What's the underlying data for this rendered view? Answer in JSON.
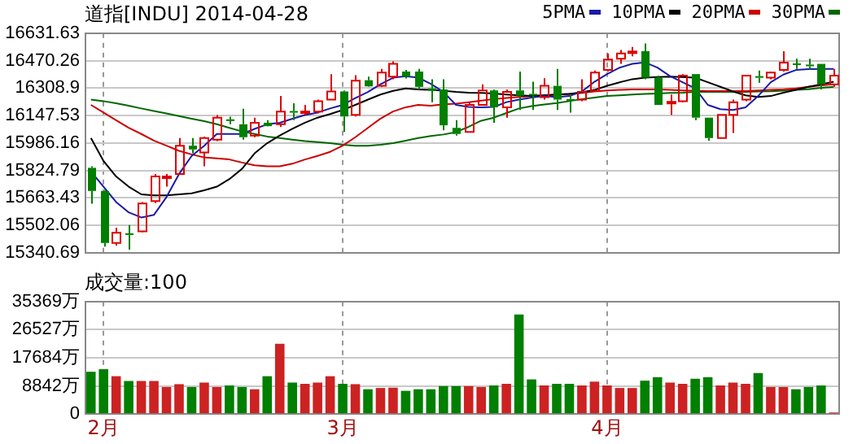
{
  "chart_data": [
    {
      "type": "candlestick",
      "title": "道指[INDU] 2014-04-28",
      "legend": "top right",
      "marker": "none",
      "grid": true,
      "tick_labels": "y",
      "categories": [
        null,
        null,
        null,
        null,
        null,
        null,
        null,
        null,
        null,
        null,
        null,
        null,
        null,
        null,
        null,
        null,
        null,
        null,
        null,
        null,
        null,
        null,
        null,
        null,
        null,
        null,
        null,
        null,
        null,
        null,
        null,
        null,
        null,
        null,
        null,
        null,
        null,
        null,
        null,
        null,
        null,
        null,
        null,
        null,
        null,
        null,
        null,
        null,
        null,
        null,
        null,
        null,
        null,
        null,
        null,
        null,
        null,
        null,
        null,
        null
      ],
      "ylim": [
        15340.69,
        16631.63
      ],
      "yticks": [
        15340.69,
        15502.06,
        15663.43,
        15824.79,
        15986.16,
        16147.53,
        16308.9,
        16470.26,
        16631.63
      ],
      "ohlc": [
        [
          15840,
          15849,
          15629,
          15704
        ],
        [
          15704,
          15710,
          15377,
          15398
        ],
        [
          15398,
          15488,
          15383,
          15458
        ],
        [
          15455,
          15503,
          15359,
          15449
        ],
        [
          15467,
          15639,
          15462,
          15630
        ],
        [
          15645,
          15804,
          15632,
          15789
        ],
        [
          15780,
          15804,
          15729,
          15789
        ],
        [
          15804,
          16015,
          15804,
          15970
        ],
        [
          15970,
          16015,
          15925,
          15948
        ],
        [
          15930,
          16024,
          15849,
          16015
        ],
        [
          16006,
          16150,
          15997,
          16135
        ],
        [
          16125,
          16141,
          16096,
          16115
        ],
        [
          16096,
          16187,
          16006,
          16020
        ],
        [
          16030,
          16135,
          16020,
          16105
        ],
        [
          16105,
          16120,
          16083,
          16085
        ],
        [
          16096,
          16262,
          16081,
          16171
        ],
        [
          16174,
          16219,
          16120,
          16165
        ],
        [
          16165,
          16210,
          16150,
          16171
        ],
        [
          16171,
          16241,
          16160,
          16232
        ],
        [
          16241,
          16391,
          16241,
          16289
        ],
        [
          16289,
          16295,
          16051,
          16142
        ],
        [
          16151,
          16385,
          16142,
          16352
        ],
        [
          16355,
          16376,
          16316,
          16319
        ],
        [
          16322,
          16421,
          16316,
          16400
        ],
        [
          16376,
          16466,
          16361,
          16451
        ],
        [
          16406,
          16415,
          16365,
          16376
        ],
        [
          16406,
          16421,
          16300,
          16316
        ],
        [
          16307,
          16361,
          16226,
          16293
        ],
        [
          16301,
          16361,
          16060,
          16090
        ],
        [
          16075,
          16120,
          16030,
          16039
        ],
        [
          16051,
          16226,
          16051,
          16210
        ],
        [
          16210,
          16331,
          16210,
          16295
        ],
        [
          16295,
          16301,
          16105,
          16196
        ],
        [
          16196,
          16301,
          16135,
          16286
        ],
        [
          16295,
          16406,
          16180,
          16264
        ],
        [
          16275,
          16346,
          16180,
          16266
        ],
        [
          16255,
          16367,
          16241,
          16322
        ],
        [
          16322,
          16421,
          16180,
          16241
        ],
        [
          16244,
          16271,
          16165,
          16237
        ],
        [
          16241,
          16361,
          16232,
          16286
        ],
        [
          16292,
          16412,
          16286,
          16400
        ],
        [
          16415,
          16512,
          16406,
          16476
        ],
        [
          16481,
          16533,
          16451,
          16512
        ],
        [
          16519,
          16551,
          16496,
          16524
        ],
        [
          16526,
          16571,
          16361,
          16370
        ],
        [
          16370,
          16382,
          16210,
          16210
        ],
        [
          16223,
          16271,
          16151,
          16228
        ],
        [
          16232,
          16391,
          16226,
          16382
        ],
        [
          16391,
          16391,
          16120,
          16135
        ],
        [
          16135,
          16135,
          16000,
          16015
        ],
        [
          16015,
          16151,
          16015,
          16151
        ],
        [
          16151,
          16241,
          16045,
          16226
        ],
        [
          16241,
          16382,
          16232,
          16382
        ],
        [
          16379,
          16412,
          16340,
          16374
        ],
        [
          16370,
          16406,
          16361,
          16400
        ],
        [
          16415,
          16526,
          16406,
          16458
        ],
        [
          16454,
          16481,
          16421,
          16449
        ],
        [
          16447,
          16481,
          16415,
          16442
        ],
        [
          16451,
          16451,
          16301,
          16331
        ],
        [
          16331,
          16421,
          16316,
          16382
        ]
      ],
      "colors": [
        "#007f00",
        "#007f00",
        "#dd0000",
        "#007f00",
        "#dd0000",
        "#dd0000",
        "#dd0000",
        "#dd0000",
        "#007f00",
        "#dd0000",
        "#dd0000",
        "#007f00",
        "#007f00",
        "#dd0000",
        "#007f00",
        "#dd0000",
        "#007f00",
        "#dd0000",
        "#dd0000",
        "#dd0000",
        "#007f00",
        "#dd0000",
        "#007f00",
        "#dd0000",
        "#dd0000",
        "#007f00",
        "#007f00",
        "#007f00",
        "#007f00",
        "#007f00",
        "#dd0000",
        "#dd0000",
        "#007f00",
        "#dd0000",
        "#007f00",
        "#007f00",
        "#dd0000",
        "#007f00",
        "#007f00",
        "#dd0000",
        "#dd0000",
        "#dd0000",
        "#dd0000",
        "#dd0000",
        "#007f00",
        "#007f00",
        "#dd0000",
        "#dd0000",
        "#007f00",
        "#007f00",
        "#dd0000",
        "#dd0000",
        "#dd0000",
        "#007f00",
        "#dd0000",
        "#dd0000",
        "#007f00",
        "#007f00",
        "#007f00",
        "#dd0000"
      ],
      "series": [
        {
          "type": "line",
          "name": "5PMA",
          "color": "#1a1aa6",
          "values": [
            15819,
            15729,
            15639,
            15578,
            15548,
            15563,
            15668,
            15804,
            15910,
            15970,
            16039,
            16039,
            16039,
            16069,
            16096,
            16105,
            16129,
            16150,
            16165,
            16189,
            16210,
            16250,
            16286,
            16331,
            16370,
            16379,
            16370,
            16334,
            16286,
            16210,
            16198,
            16196,
            16198,
            16226,
            16241,
            16253,
            16262,
            16255,
            16262,
            16289,
            16346,
            16391,
            16429,
            16451,
            16460,
            16429,
            16379,
            16343,
            16307,
            16210,
            16185,
            16180,
            16196,
            16262,
            16343,
            16388,
            16415,
            16420,
            16421,
            16421
          ]
        },
        {
          "type": "line",
          "name": "10PMA",
          "color": "#000000",
          "values": [
            16015,
            15880,
            15789,
            15729,
            15684,
            15678,
            15678,
            15684,
            15690,
            15708,
            15729,
            15774,
            15834,
            15925,
            15985,
            16030,
            16069,
            16105,
            16135,
            16156,
            16180,
            16210,
            16241,
            16271,
            16292,
            16307,
            16301,
            16298,
            16293,
            16286,
            16282,
            16280,
            16277,
            16271,
            16266,
            16262,
            16266,
            16271,
            16275,
            16284,
            16298,
            16322,
            16343,
            16361,
            16370,
            16374,
            16376,
            16374,
            16370,
            16343,
            16316,
            16289,
            16266,
            16257,
            16262,
            16282,
            16298,
            16316,
            16331,
            16346
          ]
        },
        {
          "type": "line",
          "name": "20PMA",
          "color": "#cc0000",
          "values": [
            16210,
            16165,
            16120,
            16075,
            16039,
            16000,
            15970,
            15940,
            15919,
            15901,
            15895,
            15889,
            15871,
            15855,
            15849,
            15849,
            15864,
            15889,
            15910,
            15934,
            15970,
            16020,
            16075,
            16129,
            16171,
            16196,
            16210,
            16205,
            16213,
            16217,
            16226,
            16235,
            16244,
            16250,
            16257,
            16262,
            16266,
            16271,
            16275,
            16280,
            16289,
            16295,
            16298,
            16301,
            16301,
            16301,
            16298,
            16295,
            16293,
            16291,
            16291,
            16291,
            16291,
            16295,
            16298,
            16301,
            16307,
            16316,
            16325,
            16331
          ]
        },
        {
          "type": "line",
          "name": "30PMA",
          "color": "#006600",
          "values": [
            16241,
            16232,
            16219,
            16205,
            16189,
            16174,
            16160,
            16144,
            16129,
            16114,
            16096,
            16075,
            16054,
            16039,
            16024,
            16015,
            16006,
            15997,
            15991,
            15985,
            15976,
            15970,
            15970,
            15976,
            15985,
            16000,
            16015,
            16027,
            16036,
            16050,
            16081,
            16117,
            16135,
            16162,
            16189,
            16203,
            16212,
            16221,
            16232,
            16244,
            16253,
            16262,
            16266,
            16271,
            16275,
            16277,
            16280,
            16282,
            16286,
            16286,
            16286,
            16286,
            16286,
            16289,
            16290,
            16293,
            16298,
            16302,
            16310,
            16316
          ]
        }
      ]
    },
    {
      "type": "bar",
      "title": "成交量:100",
      "grid": true,
      "categories": [
        null,
        "2月",
        null,
        null,
        null,
        null,
        null,
        null,
        null,
        null,
        null,
        null,
        null,
        null,
        null,
        null,
        null,
        null,
        null,
        null,
        "3月",
        null,
        null,
        null,
        null,
        null,
        null,
        null,
        null,
        null,
        null,
        null,
        null,
        null,
        null,
        null,
        null,
        null,
        null,
        null,
        null,
        "4月",
        null,
        null,
        null,
        null,
        null,
        null,
        null,
        null,
        null,
        null,
        null,
        null,
        null,
        null,
        null,
        null,
        null,
        null
      ],
      "ylim": [
        0,
        35369
      ],
      "yticks": [
        0,
        {
          "value": 8842,
          "label": "8842万"
        },
        {
          "value": 17684,
          "label": "17684万"
        },
        {
          "value": 26527,
          "label": "26527万"
        },
        {
          "value": 35369,
          "label": "35369万"
        }
      ],
      "values": [
        13300,
        14100,
        11900,
        10400,
        10400,
        10400,
        8500,
        9400,
        8500,
        9900,
        8500,
        9000,
        8500,
        7800,
        11900,
        22100,
        9900,
        9500,
        9900,
        11900,
        9500,
        9400,
        7800,
        8200,
        8300,
        7300,
        7800,
        7800,
        8800,
        8800,
        8800,
        8500,
        9000,
        9500,
        31300,
        10900,
        9000,
        9500,
        9500,
        9000,
        10200,
        9000,
        8200,
        8200,
        10500,
        11600,
        9900,
        9500,
        11100,
        11600,
        9000,
        9900,
        9500,
        12900,
        8500,
        8500,
        7800,
        8500,
        9000,
        500
      ],
      "colors": [
        "#007f00",
        "#007f00",
        "#cc2222",
        "#007f00",
        "#cc2222",
        "#cc2222",
        "#cc2222",
        "#cc2222",
        "#007f00",
        "#cc2222",
        "#cc2222",
        "#007f00",
        "#007f00",
        "#cc2222",
        "#007f00",
        "#cc2222",
        "#007f00",
        "#cc2222",
        "#cc2222",
        "#cc2222",
        "#007f00",
        "#cc2222",
        "#007f00",
        "#cc2222",
        "#cc2222",
        "#007f00",
        "#007f00",
        "#007f00",
        "#007f00",
        "#007f00",
        "#cc2222",
        "#cc2222",
        "#007f00",
        "#cc2222",
        "#007f00",
        "#007f00",
        "#cc2222",
        "#007f00",
        "#007f00",
        "#cc2222",
        "#cc2222",
        "#cc2222",
        "#cc2222",
        "#cc2222",
        "#007f00",
        "#007f00",
        "#cc2222",
        "#cc2222",
        "#007f00",
        "#007f00",
        "#cc2222",
        "#cc2222",
        "#cc2222",
        "#007f00",
        "#cc2222",
        "#cc2222",
        "#007f00",
        "#007f00",
        "#007f00",
        "#cc2222"
      ]
    }
  ]
}
